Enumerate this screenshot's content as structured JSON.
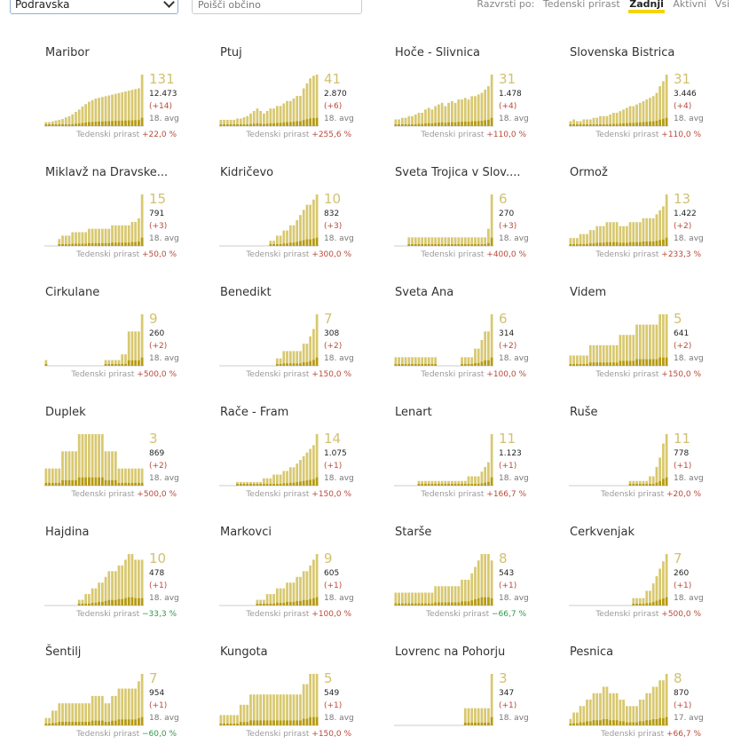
{
  "toolbar": {
    "region_value": "Podravska",
    "search_placeholder": "Poišči občino",
    "sort_label": "Razvrsti po:",
    "sort_options": [
      "Tedenski prirast",
      "Zadnji",
      "Aktivni",
      "Vsi"
    ],
    "sort_active": "Zadnji"
  },
  "colors": {
    "bar_light": "#d8c870",
    "bar_dark": "#b59b14",
    "growth_up": "#b74a3b",
    "growth_down": "#2e9a48",
    "active_underline": "#f5d400"
  },
  "growth_label": "Tedenski prirast",
  "chart_data": [
    {
      "type": "bar",
      "title": "Maribor",
      "big": "131",
      "total": "12.473",
      "delta": "(+14)",
      "date": "18. avg",
      "growth": "+22,0 %",
      "trend": "up",
      "values": [
        10,
        10,
        12,
        14,
        16,
        18,
        22,
        25,
        30,
        36,
        42,
        50,
        56,
        62,
        66,
        70,
        72,
        74,
        76,
        78,
        80,
        82,
        84,
        86,
        88,
        90,
        92,
        94,
        96,
        131
      ]
    },
    {
      "type": "bar",
      "title": "Ptuj",
      "big": "41",
      "total": "2.870",
      "delta": "(+6)",
      "date": "18. avg",
      "growth": "+255,6 %",
      "trend": "up",
      "values": [
        5,
        5,
        5,
        5,
        5,
        6,
        6,
        7,
        8,
        10,
        12,
        14,
        12,
        10,
        12,
        14,
        14,
        16,
        16,
        18,
        20,
        20,
        22,
        24,
        24,
        30,
        34,
        38,
        40,
        41
      ]
    },
    {
      "type": "bar",
      "title": "Hoče - Slivnica",
      "big": "31",
      "total": "1.478",
      "delta": "(+4)",
      "date": "18. avg",
      "growth": "+110,0 %",
      "trend": "up",
      "values": [
        4,
        4,
        5,
        5,
        6,
        6,
        7,
        8,
        8,
        10,
        11,
        10,
        12,
        13,
        14,
        12,
        14,
        15,
        14,
        16,
        16,
        17,
        16,
        18,
        18,
        19,
        20,
        22,
        24,
        31
      ]
    },
    {
      "type": "bar",
      "title": "Slovenska Bistrica",
      "big": "31",
      "total": "3.446",
      "delta": "(+4)",
      "date": "18. avg",
      "growth": "+110,0 %",
      "trend": "up",
      "values": [
        3,
        4,
        3,
        3,
        4,
        4,
        4,
        5,
        5,
        6,
        6,
        6,
        7,
        8,
        8,
        9,
        10,
        11,
        12,
        12,
        13,
        14,
        15,
        16,
        17,
        18,
        20,
        24,
        27,
        31
      ]
    },
    {
      "type": "bar",
      "title": "Miklavž na Dravske...",
      "big": "15",
      "total": "791",
      "delta": "(+3)",
      "date": "18. avg",
      "growth": "+50,0 %",
      "trend": "up",
      "values": [
        0,
        0,
        0,
        0,
        2,
        3,
        3,
        3,
        4,
        4,
        4,
        4,
        4,
        5,
        5,
        5,
        5,
        5,
        5,
        5,
        6,
        6,
        6,
        6,
        6,
        6,
        7,
        7,
        8,
        15
      ]
    },
    {
      "type": "bar",
      "title": "Kidričevo",
      "big": "10",
      "total": "832",
      "delta": "(+3)",
      "date": "18. avg",
      "growth": "+300,0 %",
      "trend": "up",
      "values": [
        0,
        0,
        0,
        0,
        0,
        0,
        0,
        0,
        0,
        0,
        0,
        0,
        0,
        0,
        0,
        1,
        1,
        2,
        2,
        3,
        3,
        4,
        4,
        5,
        6,
        7,
        8,
        8,
        9,
        10
      ]
    },
    {
      "type": "bar",
      "title": "Sveta Trojica v Slov....",
      "big": "6",
      "total": "270",
      "delta": "(+3)",
      "date": "18. avg",
      "growth": "+400,0 %",
      "trend": "up",
      "values": [
        0,
        0,
        0,
        0,
        1,
        1,
        1,
        1,
        1,
        1,
        1,
        1,
        1,
        1,
        1,
        1,
        1,
        1,
        1,
        1,
        1,
        1,
        1,
        1,
        1,
        1,
        1,
        1,
        2,
        6
      ]
    },
    {
      "type": "bar",
      "title": "Ormož",
      "big": "13",
      "total": "1.422",
      "delta": "(+2)",
      "date": "18. avg",
      "growth": "+233,3 %",
      "trend": "up",
      "values": [
        2,
        2,
        2,
        3,
        3,
        3,
        4,
        4,
        5,
        5,
        5,
        6,
        6,
        6,
        6,
        5,
        5,
        5,
        6,
        6,
        6,
        6,
        7,
        7,
        7,
        7,
        8,
        9,
        10,
        13
      ]
    },
    {
      "type": "bar",
      "title": "Cirkulane",
      "big": "9",
      "total": "260",
      "delta": "(+2)",
      "date": "18. avg",
      "growth": "+500,0 %",
      "trend": "up",
      "values": [
        1,
        0,
        0,
        0,
        0,
        0,
        0,
        0,
        0,
        0,
        0,
        0,
        0,
        0,
        0,
        0,
        0,
        0,
        1,
        1,
        1,
        1,
        1,
        2,
        2,
        6,
        6,
        6,
        6,
        9
      ]
    },
    {
      "type": "bar",
      "title": "Benedikt",
      "big": "7",
      "total": "308",
      "delta": "(+2)",
      "date": "18. avg",
      "growth": "+150,0 %",
      "trend": "up",
      "values": [
        0,
        0,
        0,
        0,
        0,
        0,
        0,
        0,
        0,
        0,
        0,
        0,
        0,
        0,
        0,
        0,
        0,
        1,
        1,
        2,
        2,
        2,
        2,
        2,
        2,
        3,
        3,
        4,
        5,
        7
      ]
    },
    {
      "type": "bar",
      "title": "Sveta Ana",
      "big": "6",
      "total": "314",
      "delta": "(+2)",
      "date": "18. avg",
      "growth": "+100,0 %",
      "trend": "up",
      "values": [
        1,
        1,
        1,
        1,
        1,
        1,
        1,
        1,
        1,
        1,
        1,
        1,
        1,
        0,
        0,
        0,
        0,
        0,
        0,
        0,
        1,
        1,
        1,
        1,
        2,
        2,
        3,
        4,
        4,
        6
      ]
    },
    {
      "type": "bar",
      "title": "Videm",
      "big": "5",
      "total": "641",
      "delta": "(+2)",
      "date": "18. avg",
      "growth": "+150,0 %",
      "trend": "up",
      "values": [
        1,
        1,
        1,
        1,
        1,
        1,
        2,
        2,
        2,
        2,
        2,
        2,
        2,
        2,
        2,
        3,
        3,
        3,
        3,
        3,
        4,
        4,
        4,
        4,
        4,
        4,
        4,
        5,
        5,
        5
      ]
    },
    {
      "type": "bar",
      "title": "Duplek",
      "big": "3",
      "total": "869",
      "delta": "(+2)",
      "date": "18. avg",
      "growth": "+500,0 %",
      "trend": "up",
      "values": [
        1,
        1,
        1,
        1,
        1,
        2,
        2,
        2,
        2,
        2,
        3,
        3,
        3,
        3,
        3,
        3,
        3,
        3,
        2,
        2,
        2,
        2,
        1,
        1,
        1,
        1,
        1,
        1,
        1,
        1
      ]
    },
    {
      "type": "bar",
      "title": "Rače - Fram",
      "big": "14",
      "total": "1.075",
      "delta": "(+1)",
      "date": "18. avg",
      "growth": "+150,0 %",
      "trend": "up",
      "values": [
        0,
        0,
        0,
        0,
        0,
        1,
        1,
        1,
        1,
        1,
        1,
        1,
        1,
        2,
        2,
        2,
        3,
        3,
        3,
        4,
        4,
        5,
        5,
        6,
        7,
        8,
        9,
        10,
        11,
        14
      ]
    },
    {
      "type": "bar",
      "title": "Lenart",
      "big": "11",
      "total": "1.123",
      "delta": "(+1)",
      "date": "18. avg",
      "growth": "+166,7 %",
      "trend": "up",
      "values": [
        0,
        0,
        0,
        0,
        0,
        0,
        0,
        1,
        1,
        1,
        1,
        1,
        1,
        1,
        1,
        1,
        1,
        1,
        1,
        1,
        1,
        1,
        2,
        2,
        2,
        2,
        3,
        4,
        5,
        11
      ]
    },
    {
      "type": "bar",
      "title": "Ruše",
      "big": "11",
      "total": "778",
      "delta": "(+1)",
      "date": "18. avg",
      "growth": "+20,0 %",
      "trend": "up",
      "values": [
        0,
        0,
        0,
        0,
        0,
        0,
        0,
        0,
        0,
        0,
        0,
        0,
        0,
        0,
        0,
        0,
        0,
        0,
        1,
        1,
        1,
        1,
        1,
        1,
        2,
        2,
        4,
        6,
        9,
        11
      ]
    },
    {
      "type": "bar",
      "title": "Hajdina",
      "big": "10",
      "total": "478",
      "delta": "(+1)",
      "date": "18. avg",
      "growth": "−33,3 %",
      "trend": "down",
      "values": [
        0,
        0,
        0,
        0,
        0,
        0,
        0,
        0,
        0,
        0,
        1,
        1,
        2,
        2,
        3,
        3,
        4,
        4,
        5,
        6,
        6,
        6,
        7,
        7,
        8,
        9,
        9,
        8,
        8,
        8
      ]
    },
    {
      "type": "bar",
      "title": "Markovci",
      "big": "9",
      "total": "605",
      "delta": "(+1)",
      "date": "18. avg",
      "growth": "+100,0 %",
      "trend": "up",
      "values": [
        0,
        0,
        0,
        0,
        0,
        0,
        0,
        0,
        0,
        0,
        0,
        1,
        1,
        1,
        2,
        2,
        2,
        3,
        3,
        3,
        4,
        4,
        4,
        5,
        5,
        6,
        6,
        7,
        8,
        9
      ]
    },
    {
      "type": "bar",
      "title": "Starše",
      "big": "8",
      "total": "543",
      "delta": "(+1)",
      "date": "18. avg",
      "growth": "−66,7 %",
      "trend": "down",
      "values": [
        2,
        2,
        2,
        2,
        2,
        2,
        2,
        2,
        2,
        2,
        2,
        2,
        3,
        3,
        3,
        3,
        3,
        3,
        3,
        3,
        4,
        4,
        4,
        5,
        6,
        7,
        8,
        8,
        8,
        7
      ]
    },
    {
      "type": "bar",
      "title": "Cerkvenjak",
      "big": "7",
      "total": "260",
      "delta": "(+1)",
      "date": "18. avg",
      "growth": "+500,0 %",
      "trend": "up",
      "values": [
        0,
        0,
        0,
        0,
        0,
        0,
        0,
        0,
        0,
        0,
        0,
        0,
        0,
        0,
        0,
        0,
        0,
        0,
        0,
        1,
        1,
        1,
        1,
        2,
        2,
        3,
        4,
        5,
        6,
        7
      ]
    },
    {
      "type": "bar",
      "title": "Šentilj",
      "big": "7",
      "total": "954",
      "delta": "(+1)",
      "date": "18. avg",
      "growth": "−60,0 %",
      "trend": "down",
      "values": [
        1,
        1,
        2,
        2,
        3,
        3,
        3,
        3,
        3,
        3,
        3,
        3,
        3,
        3,
        4,
        4,
        4,
        4,
        3,
        3,
        4,
        4,
        5,
        5,
        5,
        5,
        5,
        5,
        6,
        7
      ]
    },
    {
      "type": "bar",
      "title": "Kungota",
      "big": "5",
      "total": "549",
      "delta": "(+1)",
      "date": "18. avg",
      "growth": "+150,0 %",
      "trend": "up",
      "values": [
        1,
        1,
        1,
        1,
        1,
        1,
        2,
        2,
        2,
        3,
        3,
        3,
        3,
        3,
        3,
        3,
        3,
        3,
        3,
        3,
        3,
        3,
        3,
        3,
        3,
        4,
        4,
        5,
        5,
        5
      ]
    },
    {
      "type": "bar",
      "title": "Lovrenc na Pohorju",
      "big": "3",
      "total": "347",
      "delta": "(+1)",
      "date": "18. avg",
      "growth": "",
      "trend": "up",
      "values": [
        0,
        0,
        0,
        0,
        0,
        0,
        0,
        0,
        0,
        0,
        0,
        0,
        0,
        0,
        0,
        0,
        0,
        0,
        0,
        0,
        0,
        1,
        1,
        1,
        1,
        1,
        1,
        1,
        1,
        3
      ]
    },
    {
      "type": "bar",
      "title": "Pesnica",
      "big": "8",
      "total": "870",
      "delta": "(+1)",
      "date": "17. avg",
      "growth": "+66,7 %",
      "trend": "up",
      "values": [
        1,
        2,
        2,
        3,
        3,
        4,
        4,
        5,
        5,
        5,
        6,
        6,
        5,
        5,
        5,
        4,
        4,
        3,
        3,
        3,
        3,
        4,
        4,
        5,
        5,
        6,
        6,
        7,
        7,
        8
      ]
    }
  ]
}
